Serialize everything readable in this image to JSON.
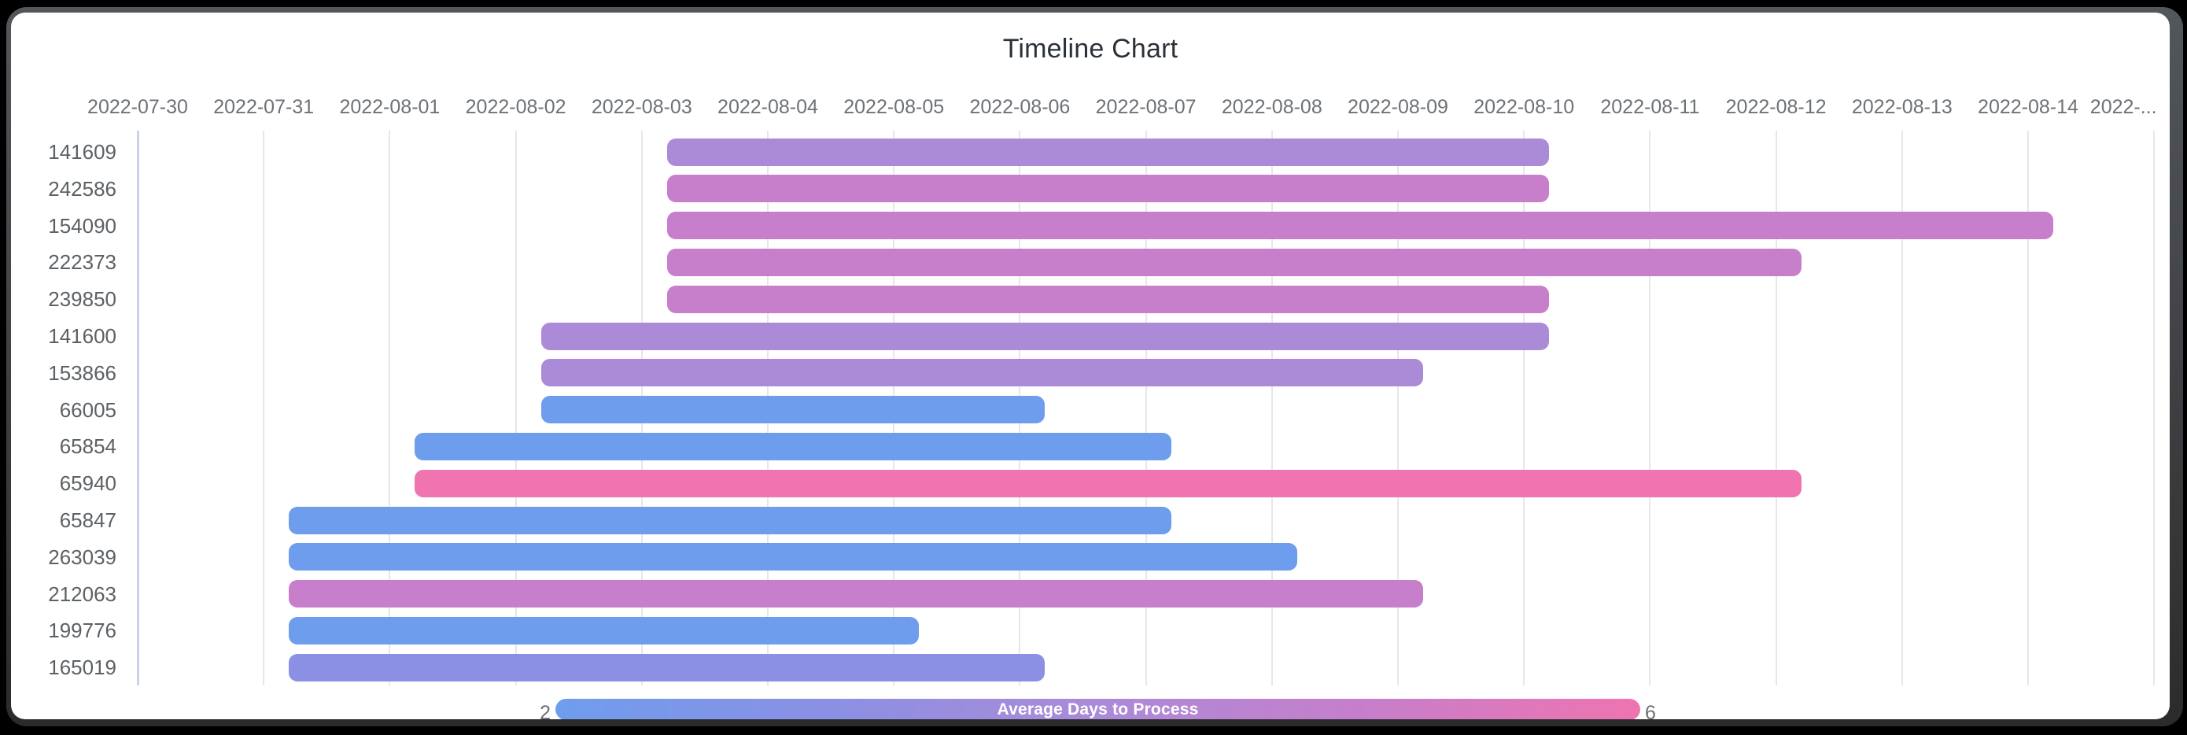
{
  "window": {
    "frame_color": "#000000",
    "rim_color_top": "#54575a",
    "rim_color_bottom": "#2a2b2d",
    "card_color": "#ffffff"
  },
  "chart_data": {
    "type": "bar",
    "variant": "timeline-gantt",
    "title": "Timeline Chart",
    "title_color": "#2b3138",
    "grid": "on",
    "grid_color": "#e7e7ea",
    "axis_line_color": "#ccd4ea",
    "axis_text_color": "#6d7277",
    "category_text_color": "#5c6165",
    "x_axis": {
      "start_date": "2022-07-30",
      "tick_labels": [
        "2022-07-30",
        "2022-07-31",
        "2022-08-01",
        "2022-08-02",
        "2022-08-03",
        "2022-08-04",
        "2022-08-05",
        "2022-08-06",
        "2022-08-07",
        "2022-08-08",
        "2022-08-09",
        "2022-08-10",
        "2022-08-11",
        "2022-08-12",
        "2022-08-13",
        "2022-08-14",
        "2022-..."
      ]
    },
    "categories": [
      "141609",
      "242586",
      "154090",
      "222373",
      "239850",
      "141600",
      "153866",
      "66005",
      "65854",
      "65940",
      "65847",
      "263039",
      "212063",
      "199776",
      "165019"
    ],
    "series": [
      {
        "label": "141609",
        "start_day": 4.2,
        "end_day": 11.2,
        "start_date": "2022-08-03",
        "end_date": "2022-08-10",
        "color": "#ab8ad8",
        "avg_days_to_process": 4
      },
      {
        "label": "242586",
        "start_day": 4.2,
        "end_day": 11.2,
        "start_date": "2022-08-03",
        "end_date": "2022-08-10",
        "color": "#c77ecb",
        "avg_days_to_process": 5
      },
      {
        "label": "154090",
        "start_day": 4.2,
        "end_day": 15.2,
        "start_date": "2022-08-03",
        "end_date": "2022-08-14",
        "color": "#c77ecb",
        "avg_days_to_process": 5
      },
      {
        "label": "222373",
        "start_day": 4.2,
        "end_day": 13.2,
        "start_date": "2022-08-03",
        "end_date": "2022-08-12",
        "color": "#c77ecb",
        "avg_days_to_process": 5
      },
      {
        "label": "239850",
        "start_day": 4.2,
        "end_day": 11.2,
        "start_date": "2022-08-03",
        "end_date": "2022-08-10",
        "color": "#c77ecb",
        "avg_days_to_process": 5
      },
      {
        "label": "141600",
        "start_day": 3.2,
        "end_day": 11.2,
        "start_date": "2022-08-02",
        "end_date": "2022-08-10",
        "color": "#ab8ad8",
        "avg_days_to_process": 4
      },
      {
        "label": "153866",
        "start_day": 3.2,
        "end_day": 10.2,
        "start_date": "2022-08-02",
        "end_date": "2022-08-09",
        "color": "#ab8ad8",
        "avg_days_to_process": 4
      },
      {
        "label": "66005",
        "start_day": 3.2,
        "end_day": 7.2,
        "start_date": "2022-08-02",
        "end_date": "2022-08-06",
        "color": "#6f9ded",
        "avg_days_to_process": 2
      },
      {
        "label": "65854",
        "start_day": 2.2,
        "end_day": 8.2,
        "start_date": "2022-08-01",
        "end_date": "2022-08-07",
        "color": "#6f9ded",
        "avg_days_to_process": 2
      },
      {
        "label": "65940",
        "start_day": 2.2,
        "end_day": 13.2,
        "start_date": "2022-08-01",
        "end_date": "2022-08-12",
        "color": "#ef74b0",
        "avg_days_to_process": 6
      },
      {
        "label": "65847",
        "start_day": 1.2,
        "end_day": 8.2,
        "start_date": "2022-07-31",
        "end_date": "2022-08-07",
        "color": "#6f9ded",
        "avg_days_to_process": 2
      },
      {
        "label": "263039",
        "start_day": 1.2,
        "end_day": 9.2,
        "start_date": "2022-07-31",
        "end_date": "2022-08-08",
        "color": "#6f9ded",
        "avg_days_to_process": 2
      },
      {
        "label": "212063",
        "start_day": 1.2,
        "end_day": 10.2,
        "start_date": "2022-07-31",
        "end_date": "2022-08-09",
        "color": "#c77ecb",
        "avg_days_to_process": 5
      },
      {
        "label": "199776",
        "start_day": 1.2,
        "end_day": 6.2,
        "start_date": "2022-07-31",
        "end_date": "2022-08-05",
        "color": "#6f9ded",
        "avg_days_to_process": 2
      },
      {
        "label": "165019",
        "start_day": 1.2,
        "end_day": 7.2,
        "start_date": "2022-07-31",
        "end_date": "2022-08-06",
        "color": "#8b90e4",
        "avg_days_to_process": 3
      }
    ],
    "legend": {
      "position": "bottom",
      "label": "Average Days to Process",
      "min": "2",
      "max": "6",
      "gradient": [
        "#6f9ded",
        "#8b90e4",
        "#ab8ad8",
        "#c77ecb",
        "#ef74b0"
      ],
      "text_color": "#ffffff",
      "minmax_color": "#6b7075"
    }
  }
}
